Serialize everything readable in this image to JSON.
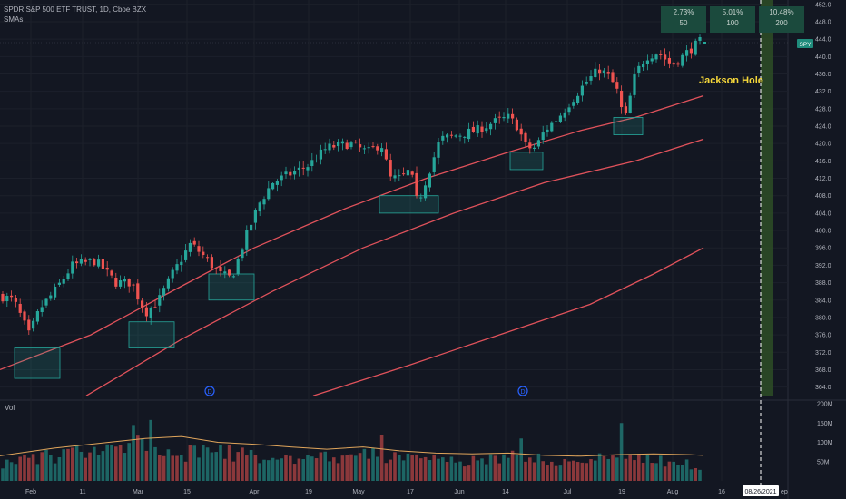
{
  "header": {
    "symbol_line": "SPDR S&P 500 ETF TRUST, 1D, Cboe BZX",
    "indicator": "SMAs",
    "stats": [
      {
        "pct": "2.73%",
        "period": "50"
      },
      {
        "pct": "5.01%",
        "period": "100"
      },
      {
        "pct": "10.48%",
        "period": "200"
      }
    ]
  },
  "ticker_badge": "SPY",
  "annotation": "Jackson Hole",
  "volume_label": "Vol",
  "date_marker": "08/26/2021",
  "date_marker_tail": "ep",
  "colors": {
    "background": "#131722",
    "up": "#26a69a",
    "down": "#ef5350",
    "sma": "#e0525b",
    "highlight_box": "#26a69a",
    "jackson_band": "#2e4d26",
    "annotation_text": "#f5d73a"
  },
  "chart_data": {
    "type": "candlestick",
    "title": "SPDR S&P 500 ETF TRUST, 1D, Cboe BZX",
    "x_ticks": [
      "Feb",
      "11",
      "Mar",
      "15",
      "Apr",
      "19",
      "May",
      "17",
      "Jun",
      "14",
      "Jul",
      "19",
      "Aug",
      "16"
    ],
    "price_axis": {
      "ticks": [
        364.0,
        368.0,
        372.0,
        376.0,
        380.0,
        384.0,
        388.0,
        392.0,
        396.0,
        400.0,
        404.0,
        408.0,
        412.0,
        416.0,
        420.0,
        424.0,
        428.0,
        432.0,
        436.0,
        440.0,
        444.0,
        448.0,
        452.0
      ],
      "range": [
        361,
        453
      ],
      "last_price": 444.0
    },
    "volume_axis": {
      "ticks": [
        "200M",
        "150M",
        "100M",
        "50M"
      ],
      "range": [
        0,
        200
      ]
    },
    "price_keypoints": [
      [
        0,
        385
      ],
      [
        15,
        384
      ],
      [
        32,
        376
      ],
      [
        44,
        382
      ],
      [
        60,
        386
      ],
      [
        80,
        392
      ],
      [
        105,
        393
      ],
      [
        128,
        388
      ],
      [
        145,
        388
      ],
      [
        160,
        381
      ],
      [
        175,
        384
      ],
      [
        190,
        390
      ],
      [
        210,
        397
      ],
      [
        225,
        394
      ],
      [
        242,
        390
      ],
      [
        255,
        389
      ],
      [
        270,
        398
      ],
      [
        285,
        406
      ],
      [
        300,
        411
      ],
      [
        320,
        413
      ],
      [
        340,
        415
      ],
      [
        360,
        419
      ],
      [
        385,
        420
      ],
      [
        405,
        418
      ],
      [
        420,
        420
      ],
      [
        430,
        412
      ],
      [
        442,
        412
      ],
      [
        452,
        414
      ],
      [
        460,
        406
      ],
      [
        470,
        412
      ],
      [
        485,
        421
      ],
      [
        505,
        422
      ],
      [
        525,
        423
      ],
      [
        545,
        425
      ],
      [
        560,
        426
      ],
      [
        570,
        424
      ],
      [
        580,
        419
      ],
      [
        590,
        419
      ],
      [
        600,
        423
      ],
      [
        615,
        426
      ],
      [
        630,
        430
      ],
      [
        645,
        434
      ],
      [
        660,
        437
      ],
      [
        668,
        436
      ],
      [
        675,
        434
      ],
      [
        680,
        432
      ],
      [
        688,
        425
      ],
      [
        700,
        436
      ],
      [
        712,
        440
      ],
      [
        725,
        441
      ],
      [
        740,
        438
      ],
      [
        752,
        440
      ],
      [
        762,
        442
      ],
      [
        775,
        444
      ]
    ],
    "sma_50": [
      [
        0,
        368
      ],
      [
        100,
        376
      ],
      [
        180,
        385
      ],
      [
        280,
        396
      ],
      [
        380,
        405
      ],
      [
        470,
        412
      ],
      [
        560,
        418
      ],
      [
        640,
        423
      ],
      [
        700,
        426
      ],
      [
        775,
        431
      ]
    ],
    "sma_100": [
      [
        95,
        362
      ],
      [
        200,
        375
      ],
      [
        300,
        386
      ],
      [
        400,
        396
      ],
      [
        500,
        404
      ],
      [
        600,
        411
      ],
      [
        700,
        416
      ],
      [
        775,
        421
      ]
    ],
    "sma_200": [
      [
        345,
        362
      ],
      [
        450,
        369
      ],
      [
        550,
        376
      ],
      [
        650,
        383
      ],
      [
        720,
        390
      ],
      [
        775,
        396
      ]
    ],
    "support_boxes": [
      {
        "x": [
          16,
          66
        ],
        "price": [
          373,
          366
        ]
      },
      {
        "x": [
          142,
          192
        ],
        "price": [
          379,
          373
        ]
      },
      {
        "x": [
          230,
          280
        ],
        "price": [
          390,
          384
        ]
      },
      {
        "x": [
          418,
          483
        ],
        "price": [
          408,
          404
        ]
      },
      {
        "x": [
          562,
          598
        ],
        "price": [
          418,
          414
        ]
      },
      {
        "x": [
          676,
          708
        ],
        "price": [
          426,
          422
        ]
      }
    ],
    "dividend_markers": [
      231,
      576
    ],
    "jackson_hole_x": 838,
    "volume_keypoints": [
      [
        0,
        45
      ],
      [
        60,
        65
      ],
      [
        100,
        75
      ],
      [
        140,
        85
      ],
      [
        160,
        95
      ],
      [
        175,
        80
      ],
      [
        200,
        70
      ],
      [
        240,
        75
      ],
      [
        280,
        65
      ],
      [
        320,
        58
      ],
      [
        360,
        60
      ],
      [
        400,
        70
      ],
      [
        440,
        62
      ],
      [
        470,
        52
      ],
      [
        500,
        50
      ],
      [
        540,
        55
      ],
      [
        570,
        62
      ],
      [
        600,
        55
      ],
      [
        640,
        48
      ],
      [
        680,
        62
      ],
      [
        700,
        58
      ],
      [
        740,
        45
      ],
      [
        775,
        40
      ]
    ],
    "volume_spikes": [
      [
        146,
        145
      ],
      [
        168,
        158
      ],
      [
        420,
        120
      ],
      [
        572,
        110
      ],
      [
        686,
        150
      ],
      [
        730,
        65
      ]
    ],
    "volume_ma": [
      [
        0,
        65
      ],
      [
        60,
        85
      ],
      [
        100,
        95
      ],
      [
        160,
        110
      ],
      [
        200,
        115
      ],
      [
        240,
        100
      ],
      [
        280,
        95
      ],
      [
        320,
        88
      ],
      [
        360,
        82
      ],
      [
        400,
        88
      ],
      [
        440,
        78
      ],
      [
        480,
        72
      ],
      [
        520,
        70
      ],
      [
        560,
        72
      ],
      [
        600,
        66
      ],
      [
        640,
        64
      ],
      [
        680,
        68
      ],
      [
        720,
        70
      ],
      [
        760,
        68
      ],
      [
        775,
        66
      ]
    ]
  }
}
